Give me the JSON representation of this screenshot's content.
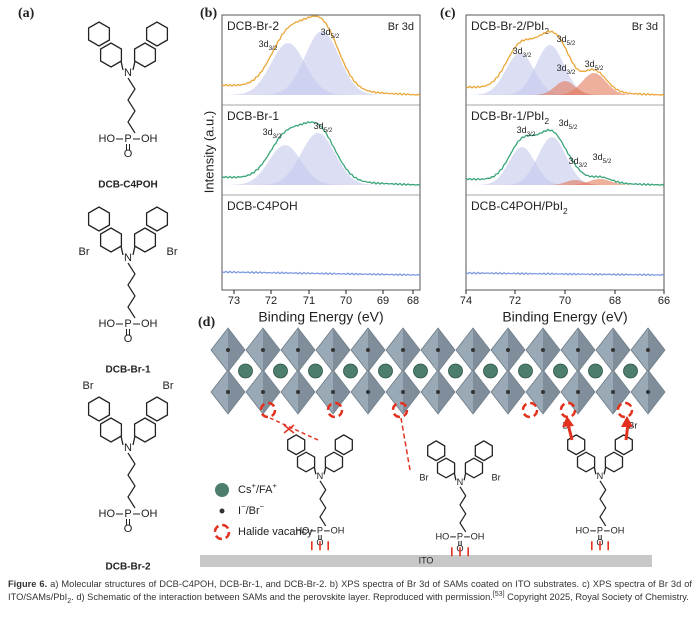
{
  "panels": {
    "a": {
      "label": "(a)",
      "molecules": [
        {
          "name": "DCB-C4POH",
          "nitrogen": "N",
          "phosphonate": [
            "HO",
            "P",
            "OH",
            "O"
          ]
        },
        {
          "name": "DCB-Br-1",
          "nitrogen": "N",
          "substituent": "Br",
          "phosphonate": [
            "HO",
            "P",
            "OH",
            "O"
          ]
        },
        {
          "name": "DCB-Br-2",
          "nitrogen": "N",
          "substituent": "Br",
          "phosphonate": [
            "HO",
            "P",
            "OH",
            "O"
          ]
        }
      ]
    },
    "b": {
      "label": "(b)",
      "element": "Br 3d",
      "y_label": "Intensity (a.u.)",
      "x_label": "Binding Energy (eV)",
      "xticks": [
        73,
        72,
        71,
        70,
        69,
        68
      ],
      "traces": [
        {
          "name": [
            "DCB-Br-2"
          ],
          "peaks": [
            [
              "3d",
              "3/2"
            ],
            [
              "3d",
              "5/2"
            ]
          ]
        },
        {
          "name": [
            "DCB-Br-1"
          ],
          "peaks": [
            [
              "3d",
              "3/2"
            ],
            [
              "3d",
              "5/2"
            ]
          ]
        },
        {
          "name": [
            "DCB-C4POH"
          ]
        }
      ]
    },
    "c": {
      "label": "(c)",
      "element": "Br 3d",
      "xticks": [
        74,
        72,
        70,
        68,
        66
      ],
      "traces": [
        {
          "name": [
            "DCB-Br-2/PbI",
            "2"
          ],
          "peaks": [
            [
              "3d",
              "3/2"
            ],
            [
              "3d",
              "5/2"
            ],
            [
              "3d",
              "3/2"
            ],
            [
              "3d",
              "5/2"
            ]
          ]
        },
        {
          "name": [
            "DCB-Br-1/PbI",
            "2"
          ],
          "peaks": [
            [
              "3d",
              "3/2"
            ],
            [
              "3d",
              "5/2"
            ],
            [
              "3d",
              "3/2"
            ],
            [
              "3d",
              "5/2"
            ]
          ]
        },
        {
          "name": [
            "DCB-C4POH/PbI",
            "2"
          ]
        }
      ]
    },
    "d": {
      "label": "(d)",
      "legend": {
        "cation": [
          "Cs",
          "+",
          "/FA",
          "+"
        ],
        "anion": [
          "I",
          "−",
          "/Br",
          "−"
        ],
        "vacancy": "Halide vacancy"
      },
      "substrate": "ITO",
      "molecules": [
        {
          "nitrogen": "N",
          "phosphonate": [
            "HO",
            "P",
            "OH",
            "O"
          ]
        },
        {
          "nitrogen": "N",
          "substituent": "Br",
          "phosphonate": [
            "HO",
            "P",
            "OH",
            "O"
          ]
        },
        {
          "nitrogen": "N",
          "substituent": "Br",
          "phosphonate": [
            "HO",
            "P",
            "OH",
            "O"
          ]
        }
      ]
    }
  },
  "caption": [
    "Figure 6.",
    " a) Molecular structures of DCB-C4POH, DCB-Br-1, and DCB-Br-2. b) XPS spectra of Br 3d of SAMs coated on ITO substrates. c) XPS spectra of Br 3d of ITO/SAMs/PbI",
    "2",
    ". d) Schematic of the interaction between SAMs and the perovskite layer. Reproduced with permission.",
    "[53]",
    " Copyright 2025, Royal Society of Chemistry."
  ]
}
